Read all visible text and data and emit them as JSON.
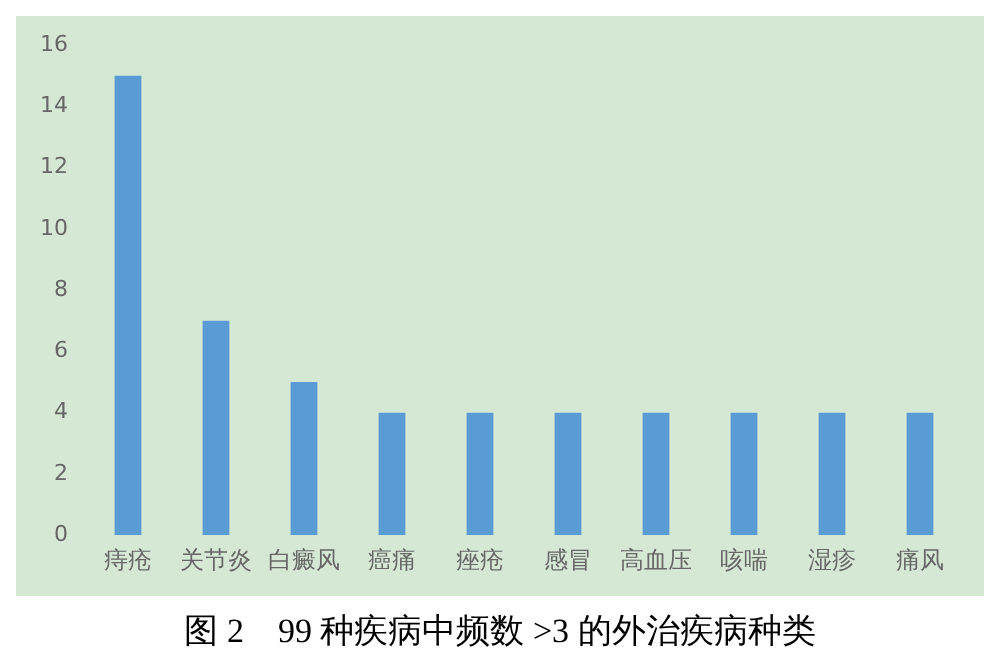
{
  "chart_data": {
    "type": "bar",
    "title": "图 2　99 种疾病中频数 >3 的外治疾病种类",
    "categories": [
      "痔疮",
      "关节炎",
      "白癜风",
      "癌痛",
      "痤疮",
      "感冒",
      "高血压",
      "咳喘",
      "湿疹",
      "痛风"
    ],
    "values": [
      15,
      7,
      5,
      4,
      4,
      4,
      4,
      4,
      4,
      4
    ],
    "color": "#5b9bd5",
    "ylim": [
      0,
      16
    ],
    "yticks": [
      0,
      2,
      4,
      6,
      8,
      10,
      12,
      14,
      16
    ],
    "grid": false,
    "legend": false
  }
}
